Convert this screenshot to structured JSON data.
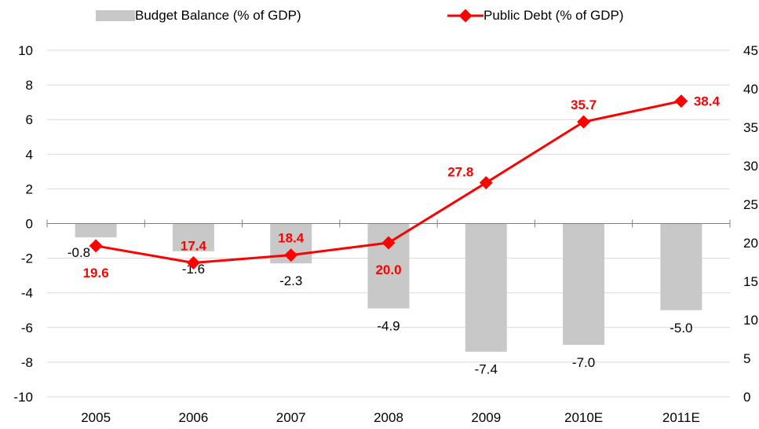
{
  "chart_data": {
    "type": "bar",
    "categories": [
      "2005",
      "2006",
      "2007",
      "2008",
      "2009",
      "2010E",
      "2011E"
    ],
    "series": [
      {
        "name": "Budget Balance (% of GDP)",
        "type": "bar",
        "axis": "left",
        "values": [
          -0.8,
          -1.6,
          -2.3,
          -4.9,
          -7.4,
          -7.0,
          -5.0
        ],
        "labels": [
          "-0.8",
          "-1.6",
          "-2.3",
          "-4.9",
          "-7.4",
          "-7.0",
          "-5.0"
        ],
        "color": "#c8c8c8"
      },
      {
        "name": "Public Debt (% of GDP)",
        "type": "line",
        "axis": "right",
        "values": [
          19.6,
          17.4,
          18.4,
          20.0,
          27.8,
          35.7,
          38.4
        ],
        "labels": [
          "19.6",
          "17.4",
          "18.4",
          "20.0",
          "27.8",
          "35.7",
          "38.4"
        ],
        "color": "#ff0000"
      }
    ],
    "y_left": {
      "ylim": [
        -10,
        10
      ],
      "ticks": [
        "10",
        "8",
        "6",
        "4",
        "2",
        "0",
        "-2",
        "-4",
        "-6",
        "-8",
        "-10"
      ]
    },
    "y_right": {
      "ylim": [
        0,
        45
      ],
      "ticks": [
        "45",
        "40",
        "35",
        "30",
        "25",
        "20",
        "15",
        "10",
        "5",
        "0"
      ]
    },
    "grid": true,
    "legend_position": "top"
  }
}
